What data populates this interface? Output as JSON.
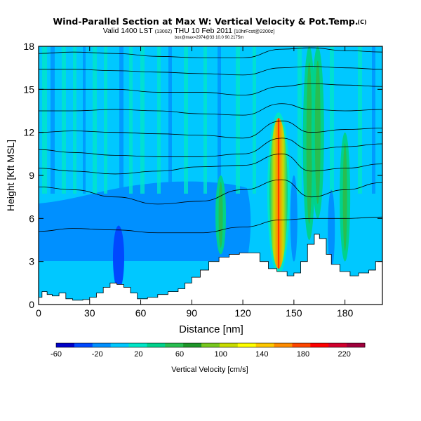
{
  "chart_data": {
    "type": "heatmap",
    "title": "Wind-Parallel Section at Max W: Vertical Velocity & Pot.Temp.",
    "title_mark": "(C)",
    "subtitle_main": "Valid 1400 LST",
    "subtitle_utc": "(1300Z)",
    "subtitle_date": "THU 10 Feb 2011",
    "subtitle_run": "[10hrFcst@2200z]",
    "subtitle_small": "box@max=2974@33 10.0 90.2175m",
    "xlabel": "Distance [nm]",
    "ylabel": "Height [Kft MSL]",
    "xlim": [
      0,
      202
    ],
    "ylim": [
      0,
      18
    ],
    "x_ticks": [
      "0",
      "30",
      "60",
      "90",
      "120",
      "150",
      "180"
    ],
    "x_tick_values": [
      0,
      30,
      60,
      90,
      120,
      150,
      180
    ],
    "y_ticks": [
      "0",
      "3",
      "6",
      "9",
      "12",
      "15",
      "18"
    ],
    "y_tick_values": [
      0,
      3,
      6,
      9,
      12,
      15,
      18
    ],
    "colorbar": {
      "label": "Vertical Velocity [cm/s]",
      "tick_labels": [
        "-60",
        "-20",
        "20",
        "60",
        "100",
        "140",
        "180",
        "220"
      ],
      "tick_values": [
        -60,
        -20,
        20,
        60,
        100,
        140,
        180,
        220
      ],
      "range": [
        -60,
        240
      ],
      "colors": [
        "#0000c8",
        "#0048ff",
        "#0090ff",
        "#00c8ff",
        "#00e6c8",
        "#00d28c",
        "#28be50",
        "#1e9628",
        "#78c81e",
        "#c8dc00",
        "#ffff00",
        "#ffc800",
        "#ff8c00",
        "#ff4600",
        "#ff0000",
        "#d2002d",
        "#a0003c"
      ]
    },
    "terrain_kft": [
      [
        0,
        0.5
      ],
      [
        2,
        0.9
      ],
      [
        5,
        0.7
      ],
      [
        8,
        0.6
      ],
      [
        12,
        0.8
      ],
      [
        16,
        0.4
      ],
      [
        20,
        0.3
      ],
      [
        26,
        0.35
      ],
      [
        30,
        0.5
      ],
      [
        34,
        0.8
      ],
      [
        38,
        1.2
      ],
      [
        42,
        1.5
      ],
      [
        46,
        1.4
      ],
      [
        50,
        1.2
      ],
      [
        54,
        0.8
      ],
      [
        58,
        0.4
      ],
      [
        64,
        0.5
      ],
      [
        70,
        0.7
      ],
      [
        76,
        0.9
      ],
      [
        82,
        1.1
      ],
      [
        86,
        1.5
      ],
      [
        90,
        1.9
      ],
      [
        95,
        2.4
      ],
      [
        100,
        3.0
      ],
      [
        106,
        3.3
      ],
      [
        112,
        3.5
      ],
      [
        118,
        3.6
      ],
      [
        124,
        3.6
      ],
      [
        130,
        3.0
      ],
      [
        135,
        2.5
      ],
      [
        140,
        2.3
      ],
      [
        146,
        2.0
      ],
      [
        150,
        2.2
      ],
      [
        154,
        3.0
      ],
      [
        158,
        4.2
      ],
      [
        162,
        4.9
      ],
      [
        165,
        4.6
      ],
      [
        169,
        3.5
      ],
      [
        172,
        2.8
      ],
      [
        177,
        2.3
      ],
      [
        183,
        2.0
      ],
      [
        188,
        2.2
      ],
      [
        194,
        2.4
      ],
      [
        198,
        3.0
      ],
      [
        202,
        3.2
      ]
    ],
    "isentropes_kft": [
      [
        5.1,
        5.3,
        5.2,
        5.0,
        5.0,
        5.4,
        5.9,
        6.0,
        6.0,
        6.1
      ],
      [
        8.2,
        8.0,
        7.5,
        7.0,
        7.2,
        8.0,
        8.7,
        7.5,
        8.0,
        8.5
      ],
      [
        9.5,
        9.3,
        9.1,
        9.3,
        9.6,
        9.7,
        10.5,
        9.3,
        9.5,
        9.8
      ],
      [
        10.8,
        10.6,
        10.4,
        10.3,
        10.3,
        10.5,
        11.6,
        10.8,
        11.0,
        11.2
      ],
      [
        12.0,
        12.1,
        12.0,
        11.9,
        11.8,
        11.6,
        12.8,
        12.0,
        12.2,
        12.3
      ],
      [
        13.5,
        13.5,
        13.6,
        13.5,
        13.3,
        13.2,
        14.0,
        13.6,
        13.5,
        13.6
      ],
      [
        15.0,
        15.0,
        15.0,
        14.8,
        14.8,
        14.6,
        15.2,
        15.4,
        15.3,
        15.2
      ],
      [
        16.4,
        16.4,
        16.3,
        16.2,
        16.1,
        16.0,
        16.5,
        16.6,
        16.5,
        16.4
      ],
      [
        17.5,
        17.6,
        17.5,
        17.3,
        17.2,
        17.2,
        17.8,
        17.9,
        17.7,
        17.6
      ]
    ],
    "isentrope_x_nm": [
      0,
      20,
      45,
      70,
      95,
      120,
      143,
      160,
      180,
      202
    ],
    "updrafts": [
      {
        "x_nm": 141,
        "z_lo": 2.5,
        "z_hi": 13.0,
        "peak": 200
      },
      {
        "x_nm": 159,
        "z_lo": 4.5,
        "z_hi": 18.0,
        "peak": 70
      },
      {
        "x_nm": 164,
        "z_lo": 6.0,
        "z_hi": 18.0,
        "peak": 60
      },
      {
        "x_nm": 180,
        "z_lo": 3.0,
        "z_hi": 12.0,
        "peak": 50
      },
      {
        "x_nm": 107,
        "z_lo": 3.5,
        "z_hi": 9.0,
        "peak": 30
      }
    ],
    "downdrafts": [
      {
        "x_nm": 47,
        "z_lo": 1.0,
        "z_hi": 5.5,
        "peak": -40
      },
      {
        "x_nm": 172,
        "z_lo": 2.5,
        "z_hi": 8.0,
        "peak": -25
      },
      {
        "x_nm": 150,
        "z_lo": 3.0,
        "z_hi": 9.0,
        "peak": -20
      }
    ],
    "grid": false
  }
}
